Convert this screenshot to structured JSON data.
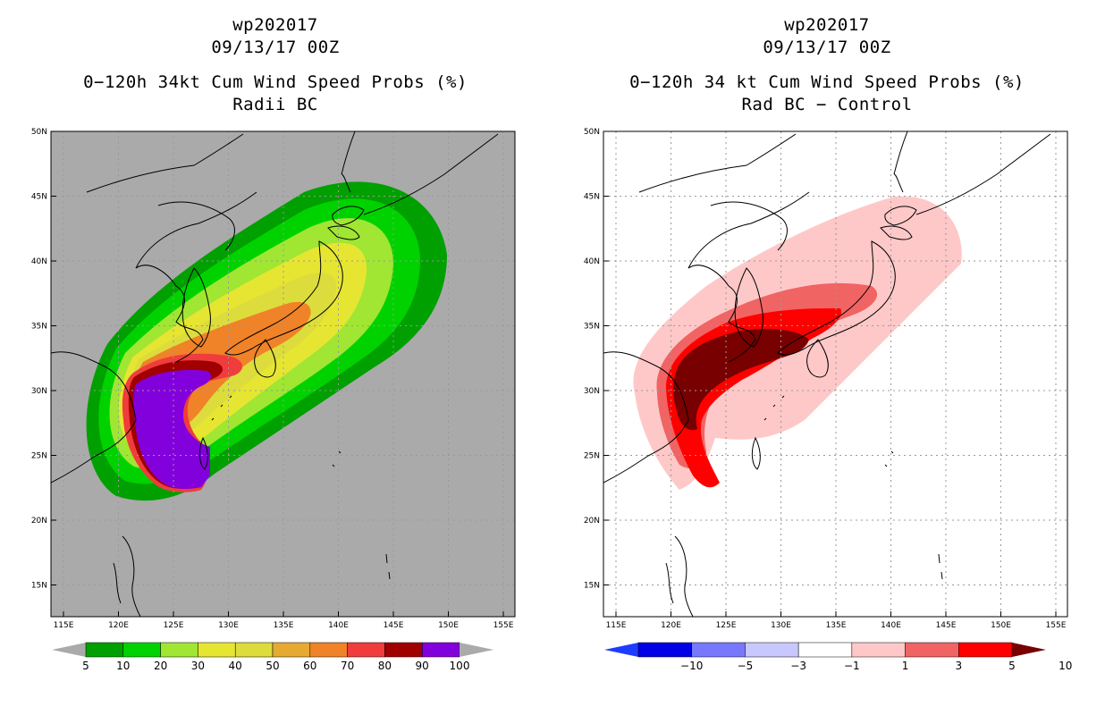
{
  "left_panel": {
    "storm_id": "wp202017",
    "datetime": "09/13/17 00Z",
    "title": "0−120h 34kt Cum Wind Speed Probs (%)",
    "subtitle": "Radii BC",
    "legend_labels": [
      "5",
      "10",
      "20",
      "30",
      "40",
      "50",
      "60",
      "70",
      "80",
      "90",
      "100"
    ],
    "legend_colors": [
      "#aaaaaa",
      "#00a000",
      "#00d200",
      "#a0e632",
      "#e6e632",
      "#dcdc3c",
      "#e6aa32",
      "#f08228",
      "#f03c3c",
      "#a00000",
      "#8200dc",
      "#aaaaaa"
    ],
    "background_color": "#aaaaaa"
  },
  "right_panel": {
    "storm_id": "wp202017",
    "datetime": "09/13/17 00Z",
    "title": "0−120h 34 kt Cum Wind Speed Probs (%)",
    "subtitle": "Rad BC − Control",
    "legend_labels": [
      "−10",
      "−5",
      "−3",
      "−1",
      "1",
      "3",
      "5",
      "10"
    ],
    "legend_colors": [
      "#1e3cff",
      "#0000e6",
      "#7878ff",
      "#c8c8ff",
      "#ffffff",
      "#ffc8c8",
      "#f06464",
      "#ff0000",
      "#780000"
    ],
    "background_color": "#ffffff"
  },
  "axes": {
    "lon_labels": [
      "115E",
      "120E",
      "125E",
      "130E",
      "135E",
      "140E",
      "145E",
      "150E",
      "155E"
    ],
    "lat_labels": [
      "15N",
      "20N",
      "25N",
      "30N",
      "35N",
      "40N",
      "45N",
      "50N"
    ]
  },
  "colors": {
    "coast": "#000000",
    "grid": "#999999"
  }
}
